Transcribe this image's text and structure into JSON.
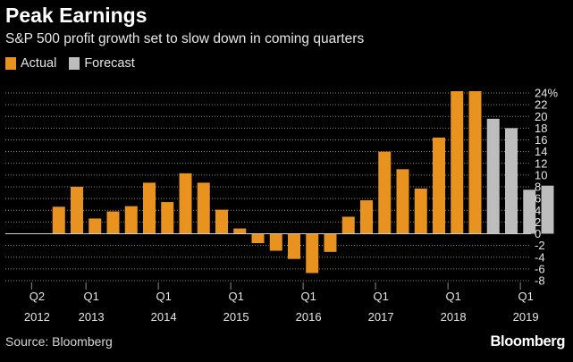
{
  "header": {
    "title": "Peak Earnings",
    "subtitle": "S&P 500 profit growth set to slow down in coming quarters"
  },
  "legend": {
    "actual_label": "Actual",
    "forecast_label": "Forecast"
  },
  "colors": {
    "actual": "#e8921f",
    "forecast": "#bdbdbd",
    "grid": "#8a8a8a",
    "zero_line": "#cfcfcf",
    "text": "#e6e6e6"
  },
  "footer": {
    "source": "Source: Bloomberg",
    "brand": "Bloomberg"
  },
  "chart_data": {
    "type": "bar",
    "title": "Peak Earnings",
    "subtitle": "S&P 500 profit growth set to slow down in coming quarters",
    "xlabel": "",
    "ylabel": "",
    "ylim": [
      -8,
      24
    ],
    "yticks": [
      24,
      22,
      20,
      18,
      16,
      14,
      12,
      10,
      8,
      6,
      4,
      2,
      0,
      -2,
      -4,
      -6,
      -8
    ],
    "ytick_labels": [
      "24%",
      "22",
      "20",
      "18",
      "16",
      "14",
      "12",
      "10",
      "8",
      "6",
      "4",
      "2",
      "0",
      "-2",
      "-4",
      "-6",
      "-8"
    ],
    "y_axis_side": "right",
    "grid": true,
    "legend_position": "top-left",
    "categories": [
      "2012 Q2",
      "2012 Q3",
      "2012 Q4",
      "2013 Q1",
      "2013 Q2",
      "2013 Q3",
      "2013 Q4",
      "2014 Q1",
      "2014 Q2",
      "2014 Q3",
      "2014 Q4",
      "2015 Q1",
      "2015 Q2",
      "2015 Q3",
      "2015 Q4",
      "2016 Q1",
      "2016 Q2",
      "2016 Q3",
      "2016 Q4",
      "2017 Q1",
      "2017 Q2",
      "2017 Q3",
      "2017 Q4",
      "2018 Q1",
      "2018 Q2",
      "2018 Q3",
      "2018 Q4",
      "2019 Q1",
      "2019 Q2"
    ],
    "values": [
      null,
      4.6,
      8.0,
      2.6,
      3.8,
      4.7,
      8.7,
      5.4,
      10.3,
      8.7,
      4.1,
      0.9,
      -1.6,
      -2.9,
      -4.3,
      -6.7,
      -3.1,
      2.9,
      5.7,
      14.0,
      11.0,
      7.7,
      16.4,
      24.3,
      24.3,
      19.6,
      18.0,
      7.5,
      8.2
    ],
    "series_type": [
      "none",
      "actual",
      "actual",
      "actual",
      "actual",
      "actual",
      "actual",
      "actual",
      "actual",
      "actual",
      "actual",
      "actual",
      "actual",
      "actual",
      "actual",
      "actual",
      "actual",
      "actual",
      "actual",
      "actual",
      "actual",
      "actual",
      "actual",
      "actual",
      "actual",
      "forecast",
      "forecast",
      "forecast",
      "forecast"
    ],
    "x_tick_labels": [
      {
        "quarter": "Q2",
        "year": "2012",
        "index": 0
      },
      {
        "quarter": "Q1",
        "year": "2013",
        "index": 3
      },
      {
        "quarter": "Q1",
        "year": "2014",
        "index": 7
      },
      {
        "quarter": "Q1",
        "year": "2015",
        "index": 11
      },
      {
        "quarter": "Q1",
        "year": "2016",
        "index": 15
      },
      {
        "quarter": "Q1",
        "year": "2017",
        "index": 19
      },
      {
        "quarter": "Q1",
        "year": "2018",
        "index": 23
      },
      {
        "quarter": "Q1",
        "year": "2019",
        "index": 27
      }
    ]
  }
}
